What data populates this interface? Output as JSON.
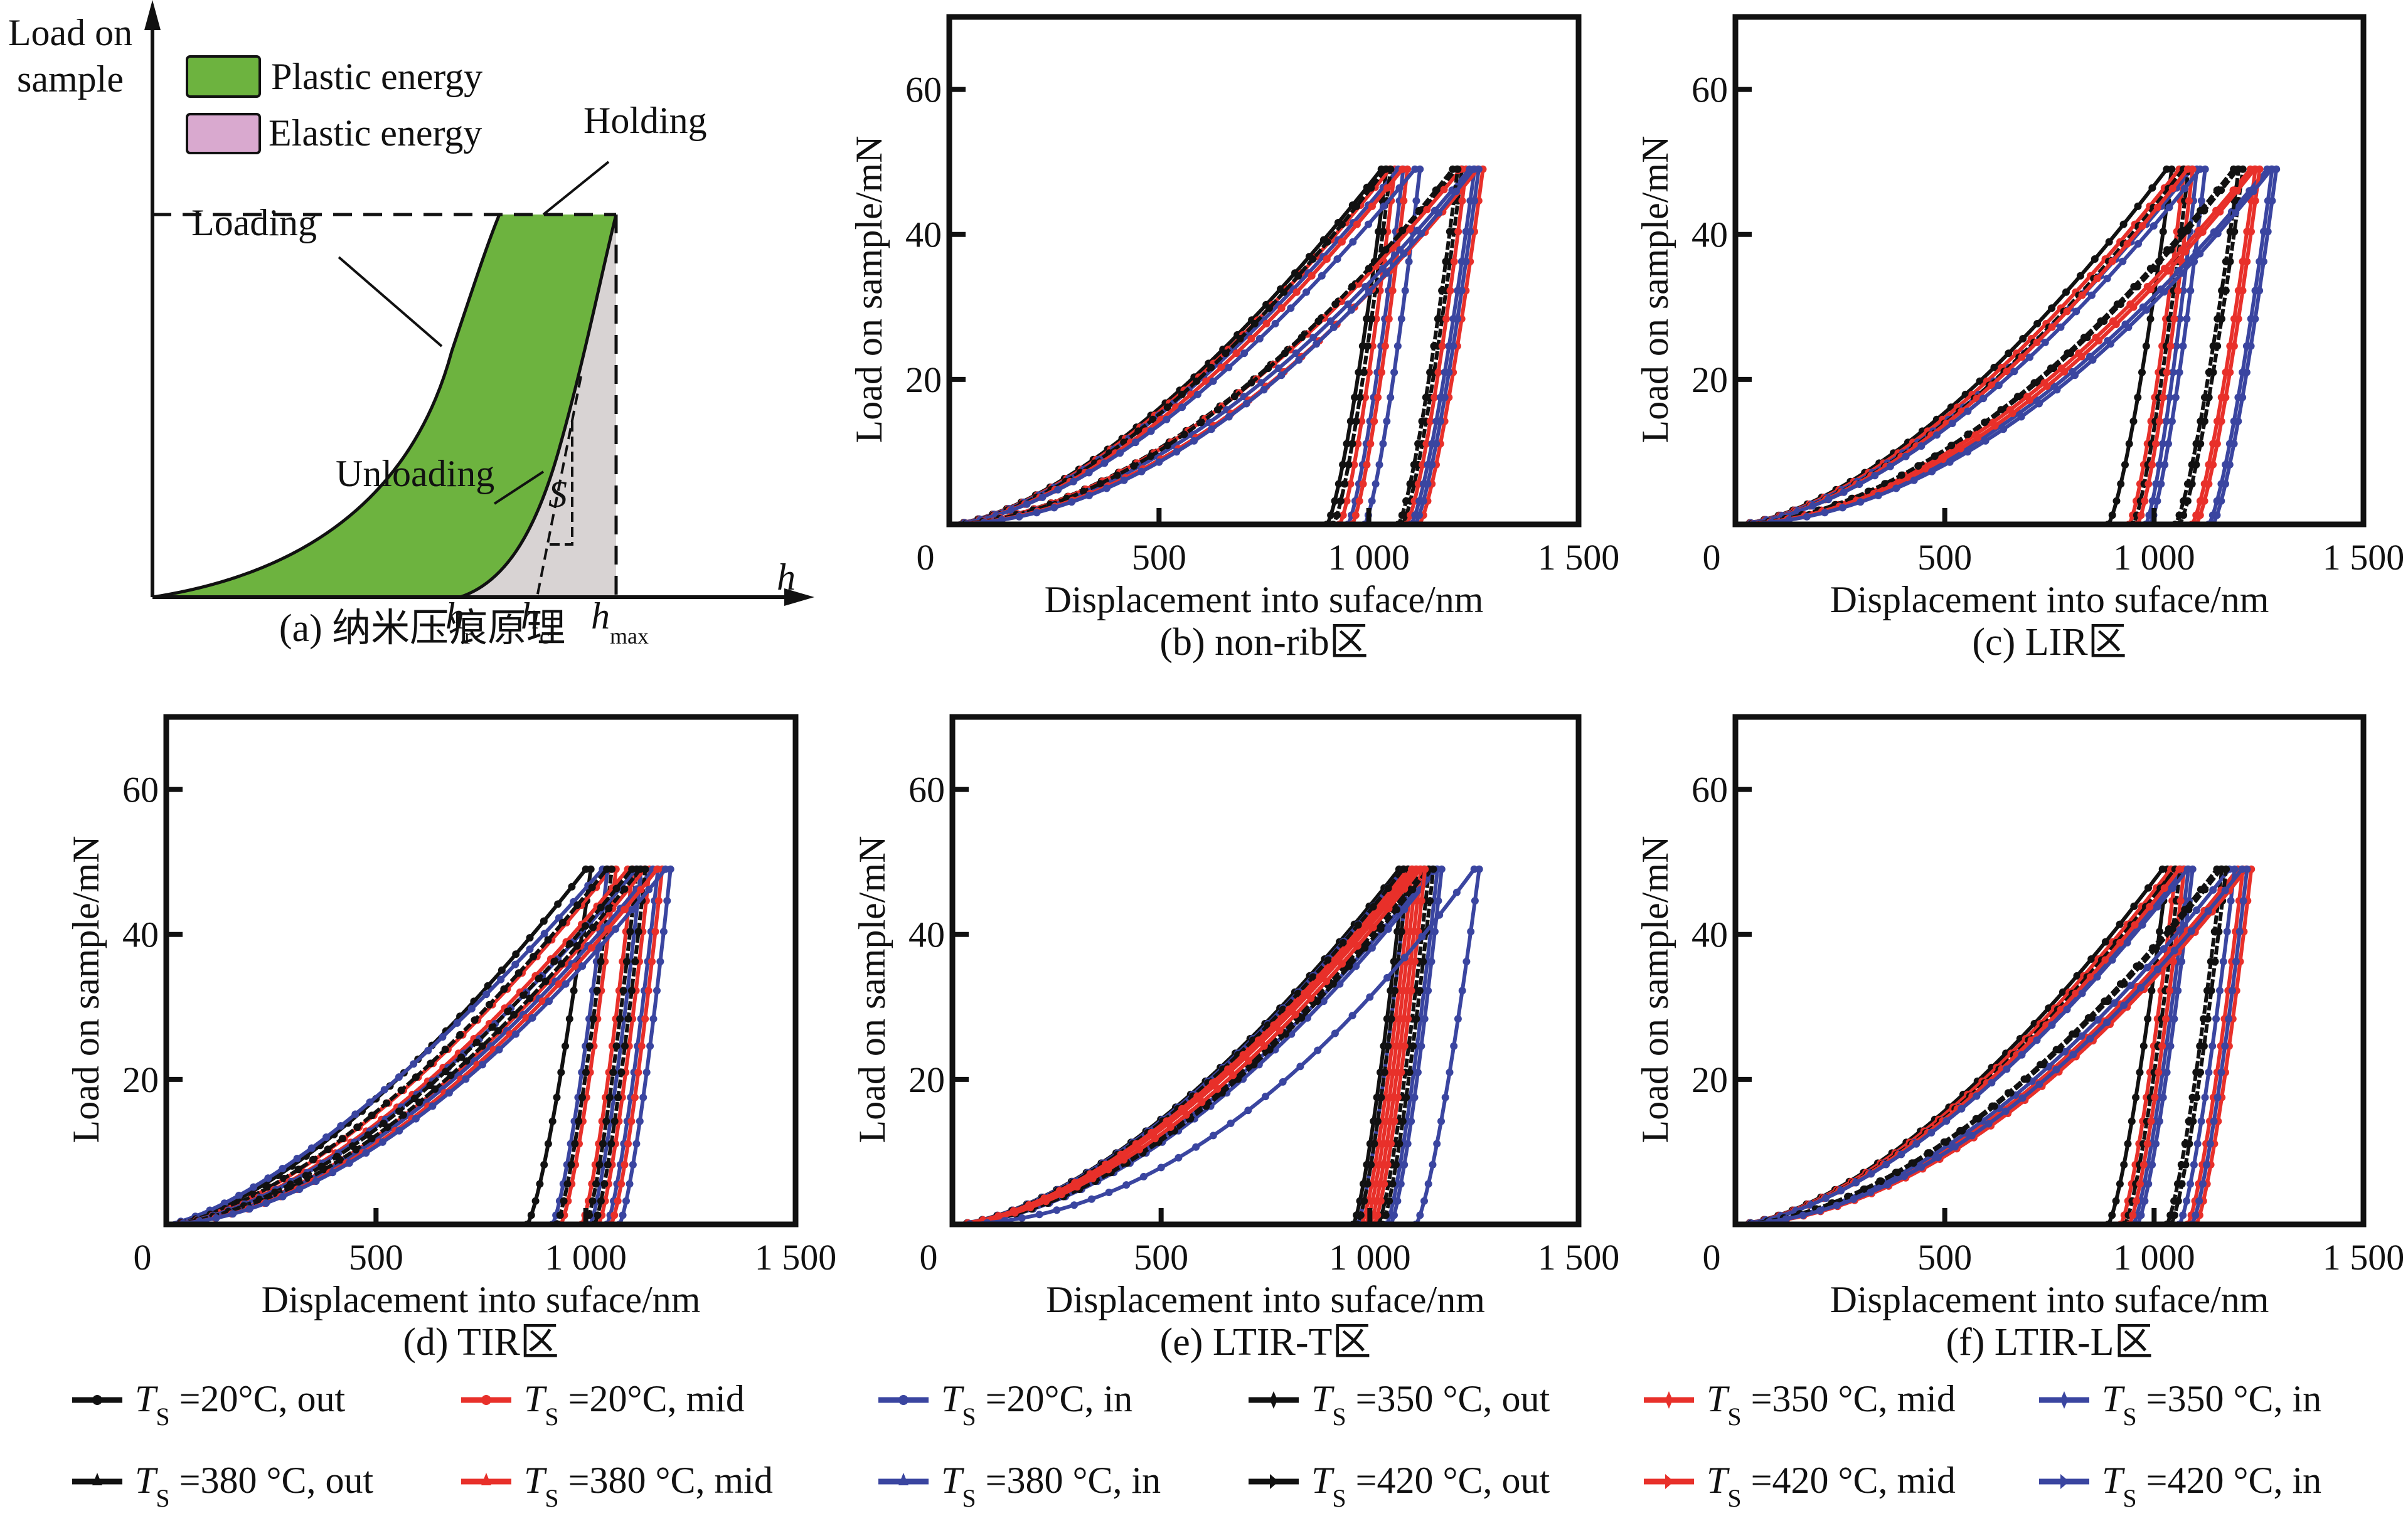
{
  "figure": {
    "panel_a": {
      "caption": "(a) 纳米压痕原理",
      "y_axis_title_line1": "Load on",
      "y_axis_title_line2": "sample",
      "x_axis_title": "h",
      "legend": [
        {
          "label": "Plastic energy",
          "color": "#6db33f"
        },
        {
          "label": "Elastic energy",
          "color": "#d9a9cf"
        }
      ],
      "annotations": {
        "holding": "Holding",
        "loading": "Loading",
        "unloading": "Unloading",
        "stiffness": "S"
      },
      "x_markers": [
        {
          "base": "h",
          "sub": "r"
        },
        {
          "base": "h",
          "sub": "c"
        },
        {
          "base": "h",
          "sub": "max"
        }
      ],
      "elastic_region_color": "#d8d3d3"
    },
    "series_legend": [
      {
        "label_pre": "T",
        "label_sub": "S",
        "label_post": " =20°C, out",
        "color": "#111111",
        "marker": "dot"
      },
      {
        "label_pre": "T",
        "label_sub": "S",
        "label_post": " =20°C, mid",
        "color": "#e8302a",
        "marker": "dot"
      },
      {
        "label_pre": "T",
        "label_sub": "S",
        "label_post": " =20°C, in",
        "color": "#3a45a0",
        "marker": "dot"
      },
      {
        "label_pre": "T",
        "label_sub": "S",
        "label_post": " =350 °C, out",
        "color": "#111111",
        "marker": "diamond"
      },
      {
        "label_pre": "T",
        "label_sub": "S",
        "label_post": " =350 °C, mid",
        "color": "#e8302a",
        "marker": "diamond"
      },
      {
        "label_pre": "T",
        "label_sub": "S",
        "label_post": " =350 °C, in",
        "color": "#3a45a0",
        "marker": "diamond"
      },
      {
        "label_pre": "T",
        "label_sub": "S",
        "label_post": " =380 °C, out",
        "color": "#111111",
        "marker": "triangle"
      },
      {
        "label_pre": "T",
        "label_sub": "S",
        "label_post": " =380 °C, mid",
        "color": "#e8302a",
        "marker": "triangle"
      },
      {
        "label_pre": "T",
        "label_sub": "S",
        "label_post": " =380 °C, in",
        "color": "#3a45a0",
        "marker": "triangle"
      },
      {
        "label_pre": "T",
        "label_sub": "S",
        "label_post": " =420 °C, out",
        "color": "#111111",
        "marker": "arrow"
      },
      {
        "label_pre": "T",
        "label_sub": "S",
        "label_post": " =420 °C, mid",
        "color": "#e8302a",
        "marker": "arrow"
      },
      {
        "label_pre": "T",
        "label_sub": "S",
        "label_post": " =420 °C, in",
        "color": "#3a45a0",
        "marker": "arrow"
      }
    ]
  },
  "chart_data": [
    {
      "id": "b",
      "type": "line",
      "title": "(b) non-rib区",
      "xlabel": "Displacement into suface/nm",
      "ylabel": "Load on sample/mN",
      "xlim": [
        0,
        1500
      ],
      "ylim": [
        0,
        70
      ],
      "xticks": [
        0,
        500,
        1000,
        1500
      ],
      "xtick_labels": [
        "0",
        "500",
        "1 000",
        "1 500"
      ],
      "yticks": [
        20,
        40,
        60
      ],
      "ytick_labels": [
        "20",
        "40",
        "60"
      ],
      "grid": false,
      "p_max": 49,
      "series": [
        {
          "name": "Ts=20°C, out",
          "h_max": 1030,
          "h_r": 900,
          "exponent": 1.55
        },
        {
          "name": "Ts=20°C, mid",
          "h_max": 1050,
          "h_r": 930,
          "exponent": 1.55
        },
        {
          "name": "Ts=20°C, in",
          "h_max": 1070,
          "h_r": 950,
          "exponent": 1.55
        },
        {
          "name": "Ts=350°C, out",
          "h_max": 1040,
          "h_r": 915,
          "exponent": 1.6
        },
        {
          "name": "Ts=350°C, mid",
          "h_max": 1080,
          "h_r": 960,
          "exponent": 1.6
        },
        {
          "name": "Ts=350°C, in",
          "h_max": 1110,
          "h_r": 990,
          "exponent": 1.6
        },
        {
          "name": "Ts=380°C, out",
          "h_max": 1210,
          "h_r": 1080,
          "exponent": 1.75
        },
        {
          "name": "Ts=380°C, mid",
          "h_max": 1220,
          "h_r": 1090,
          "exponent": 1.75
        },
        {
          "name": "Ts=380°C, in",
          "h_max": 1240,
          "h_r": 1100,
          "exponent": 1.8
        },
        {
          "name": "Ts=420°C, out",
          "h_max": 1200,
          "h_r": 1070,
          "exponent": 1.8
        },
        {
          "name": "Ts=420°C, mid",
          "h_max": 1260,
          "h_r": 1120,
          "exponent": 1.85
        },
        {
          "name": "Ts=420°C, in",
          "h_max": 1250,
          "h_r": 1110,
          "exponent": 1.9
        }
      ]
    },
    {
      "id": "c",
      "type": "line",
      "title": "(c) LIR区",
      "xlabel": "Displacement into suface/nm",
      "ylabel": "Load on sample/mN",
      "xlim": [
        0,
        1500
      ],
      "ylim": [
        0,
        70
      ],
      "xticks": [
        0,
        500,
        1000,
        1500
      ],
      "xtick_labels": [
        "0",
        "500",
        "1 000",
        "1 500"
      ],
      "yticks": [
        20,
        40,
        60
      ],
      "ytick_labels": [
        "20",
        "40",
        "60"
      ],
      "grid": false,
      "p_max": 49,
      "series": [
        {
          "name": "Ts=20°C, out",
          "h_max": 1030,
          "h_r": 890,
          "exponent": 1.6
        },
        {
          "name": "Ts=20°C, mid",
          "h_max": 1060,
          "h_r": 940,
          "exponent": 1.6
        },
        {
          "name": "Ts=20°C, in",
          "h_max": 1090,
          "h_r": 980,
          "exponent": 1.6
        },
        {
          "name": "Ts=350°C, out",
          "h_max": 1070,
          "h_r": 950,
          "exponent": 1.65
        },
        {
          "name": "Ts=350°C, mid",
          "h_max": 1080,
          "h_r": 960,
          "exponent": 1.65
        },
        {
          "name": "Ts=350°C, in",
          "h_max": 1110,
          "h_r": 990,
          "exponent": 1.65
        },
        {
          "name": "Ts=380°C, out",
          "h_max": 1200,
          "h_r": 1060,
          "exponent": 1.8
        },
        {
          "name": "Ts=380°C, mid",
          "h_max": 1230,
          "h_r": 1090,
          "exponent": 1.8
        },
        {
          "name": "Ts=380°C, in",
          "h_max": 1270,
          "h_r": 1130,
          "exponent": 1.85
        },
        {
          "name": "Ts=420°C, out",
          "h_max": 1190,
          "h_r": 1050,
          "exponent": 1.8
        },
        {
          "name": "Ts=420°C, mid",
          "h_max": 1240,
          "h_r": 1100,
          "exponent": 1.85
        },
        {
          "name": "Ts=420°C, in",
          "h_max": 1280,
          "h_r": 1140,
          "exponent": 1.9
        }
      ]
    },
    {
      "id": "d",
      "type": "line",
      "title": "(d) TIR区",
      "xlabel": "Displacement into suface/nm",
      "ylabel": "Load on sample/mN",
      "xlim": [
        0,
        1500
      ],
      "ylim": [
        0,
        70
      ],
      "xticks": [
        0,
        500,
        1000,
        1500
      ],
      "xtick_labels": [
        "0",
        "500",
        "1 000",
        "1 500"
      ],
      "yticks": [
        20,
        40,
        60
      ],
      "ytick_labels": [
        "20",
        "40",
        "60"
      ],
      "grid": false,
      "p_max": 49,
      "series": [
        {
          "name": "Ts=20°C, out",
          "h_max": 1000,
          "h_r": 860,
          "exponent": 1.5
        },
        {
          "name": "Ts=20°C, mid",
          "h_max": 1060,
          "h_r": 940,
          "exponent": 1.55
        },
        {
          "name": "Ts=20°C, in",
          "h_max": 1040,
          "h_r": 920,
          "exponent": 1.4
        },
        {
          "name": "Ts=350°C, out",
          "h_max": 1050,
          "h_r": 930,
          "exponent": 1.55
        },
        {
          "name": "Ts=350°C, mid",
          "h_max": 1100,
          "h_r": 990,
          "exponent": 1.6
        },
        {
          "name": "Ts=350°C, in",
          "h_max": 1120,
          "h_r": 1010,
          "exponent": 1.6
        },
        {
          "name": "Ts=380°C, out",
          "h_max": 1110,
          "h_r": 1000,
          "exponent": 1.65
        },
        {
          "name": "Ts=380°C, mid",
          "h_max": 1140,
          "h_r": 1030,
          "exponent": 1.7
        },
        {
          "name": "Ts=380°C, in",
          "h_max": 1160,
          "h_r": 1050,
          "exponent": 1.7
        },
        {
          "name": "Ts=420°C, out",
          "h_max": 1130,
          "h_r": 1020,
          "exponent": 1.7
        },
        {
          "name": "Ts=420°C, mid",
          "h_max": 1170,
          "h_r": 1060,
          "exponent": 1.75
        },
        {
          "name": "Ts=420°C, in",
          "h_max": 1190,
          "h_r": 1080,
          "exponent": 1.75
        }
      ]
    },
    {
      "id": "e",
      "type": "line",
      "title": "(e) LTIR-T区",
      "xlabel": "Displacement into suface/nm",
      "ylabel": "Load on sample/mN",
      "xlim": [
        0,
        1500
      ],
      "ylim": [
        0,
        70
      ],
      "xticks": [
        0,
        500,
        1000,
        1500
      ],
      "xtick_labels": [
        "0",
        "500",
        "1 000",
        "1 500"
      ],
      "yticks": [
        20,
        40,
        60
      ],
      "ytick_labels": [
        "20",
        "40",
        "60"
      ],
      "grid": false,
      "p_max": 49,
      "series": [
        {
          "name": "Ts=20°C, out",
          "h_max": 1070,
          "h_r": 960,
          "exponent": 1.6
        },
        {
          "name": "Ts=20°C, mid",
          "h_max": 1090,
          "h_r": 980,
          "exponent": 1.6
        },
        {
          "name": "Ts=20°C, in",
          "h_max": 1080,
          "h_r": 970,
          "exponent": 1.6
        },
        {
          "name": "Ts=350°C, out",
          "h_max": 1080,
          "h_r": 970,
          "exponent": 1.62
        },
        {
          "name": "Ts=350°C, mid",
          "h_max": 1100,
          "h_r": 990,
          "exponent": 1.62
        },
        {
          "name": "Ts=350°C, in",
          "h_max": 1150,
          "h_r": 1040,
          "exponent": 1.7
        },
        {
          "name": "Ts=380°C, out",
          "h_max": 1130,
          "h_r": 1020,
          "exponent": 1.72
        },
        {
          "name": "Ts=380°C, mid",
          "h_max": 1110,
          "h_r": 1000,
          "exponent": 1.65
        },
        {
          "name": "Ts=380°C, in",
          "h_max": 1160,
          "h_r": 1050,
          "exponent": 1.75
        },
        {
          "name": "Ts=420°C, out",
          "h_max": 1140,
          "h_r": 1030,
          "exponent": 1.75
        },
        {
          "name": "Ts=420°C, mid",
          "h_max": 1120,
          "h_r": 1010,
          "exponent": 1.7
        },
        {
          "name": "Ts=420°C, in",
          "h_max": 1250,
          "h_r": 1110,
          "exponent": 2.0
        }
      ]
    },
    {
      "id": "f",
      "type": "line",
      "title": "(f) LTIR-L区",
      "xlabel": "Displacement into suface/nm",
      "ylabel": "Load on sample/mN",
      "xlim": [
        0,
        1500
      ],
      "ylim": [
        0,
        70
      ],
      "xticks": [
        0,
        500,
        1000,
        1500
      ],
      "xtick_labels": [
        "0",
        "500",
        "1 000",
        "1 500"
      ],
      "yticks": [
        20,
        40,
        60
      ],
      "ytick_labels": [
        "20",
        "40",
        "60"
      ],
      "grid": false,
      "p_max": 49,
      "series": [
        {
          "name": "Ts=20°C, out",
          "h_max": 1020,
          "h_r": 890,
          "exponent": 1.6
        },
        {
          "name": "Ts=20°C, mid",
          "h_max": 1040,
          "h_r": 920,
          "exponent": 1.6
        },
        {
          "name": "Ts=20°C, in",
          "h_max": 1070,
          "h_r": 950,
          "exponent": 1.6
        },
        {
          "name": "Ts=350°C, out",
          "h_max": 1050,
          "h_r": 930,
          "exponent": 1.62
        },
        {
          "name": "Ts=350°C, mid",
          "h_max": 1060,
          "h_r": 940,
          "exponent": 1.62
        },
        {
          "name": "Ts=350°C, in",
          "h_max": 1080,
          "h_r": 960,
          "exponent": 1.62
        },
        {
          "name": "Ts=380°C, out",
          "h_max": 1150,
          "h_r": 1030,
          "exponent": 1.75
        },
        {
          "name": "Ts=380°C, mid",
          "h_max": 1200,
          "h_r": 1080,
          "exponent": 1.8
        },
        {
          "name": "Ts=380°C, in",
          "h_max": 1180,
          "h_r": 1060,
          "exponent": 1.78
        },
        {
          "name": "Ts=420°C, out",
          "h_max": 1160,
          "h_r": 1040,
          "exponent": 1.75
        },
        {
          "name": "Ts=420°C, mid",
          "h_max": 1220,
          "h_r": 1100,
          "exponent": 1.85
        },
        {
          "name": "Ts=420°C, in",
          "h_max": 1210,
          "h_r": 1090,
          "exponent": 1.82
        }
      ]
    }
  ]
}
